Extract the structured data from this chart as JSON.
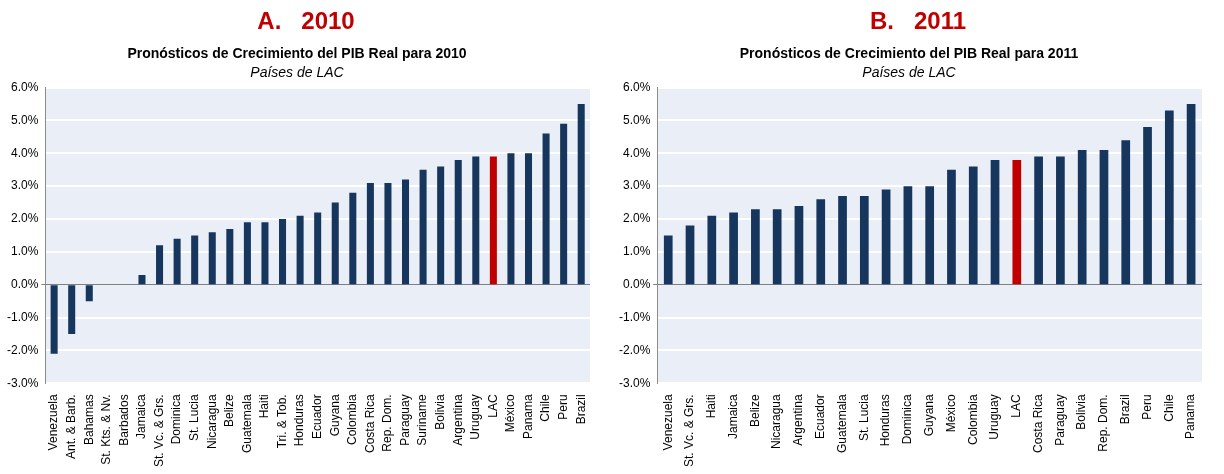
{
  "chart_data": [
    {
      "type": "bar",
      "title": "Pronósticos de Crecimiento del PIB Real para 2010",
      "subtitle": "Países de LAC",
      "annotations": [
        "A.   2010"
      ],
      "categories": [
        "Venezuela",
        "Ant. & Barb.",
        "Bahamas",
        "St. Kts. & Nv.",
        "Barbados",
        "Jamaica",
        "St. Vc. & Grs.",
        "Dominica",
        "St. Lucia",
        "Nicaragua",
        "Belize",
        "Guatemala",
        "Haiti",
        "Tri. & Tob.",
        "Honduras",
        "Ecuador",
        "Guyana",
        "Colombia",
        "Costa Rica",
        "Rep. Dom.",
        "Paraguay",
        "Suriname",
        "Bolivia",
        "Argentina",
        "Uruguay",
        "LAC",
        "México",
        "Panama",
        "Chile",
        "Peru",
        "Brazil"
      ],
      "values": [
        -2.1,
        -1.5,
        -0.5,
        0,
        0,
        0.3,
        1.2,
        1.4,
        1.5,
        1.6,
        1.7,
        1.9,
        1.9,
        2.0,
        2.1,
        2.2,
        2.5,
        2.8,
        3.1,
        3.1,
        3.2,
        3.5,
        3.6,
        3.8,
        3.9,
        3.9,
        4.0,
        4.0,
        4.6,
        4.9,
        5.5
      ],
      "colors": [
        "#17365d",
        "#17365d",
        "#17365d",
        "#17365d",
        "#17365d",
        "#17365d",
        "#17365d",
        "#17365d",
        "#17365d",
        "#17365d",
        "#17365d",
        "#17365d",
        "#17365d",
        "#17365d",
        "#17365d",
        "#17365d",
        "#17365d",
        "#17365d",
        "#17365d",
        "#17365d",
        "#17365d",
        "#17365d",
        "#17365d",
        "#17365d",
        "#17365d",
        "#c00000",
        "#17365d",
        "#17365d",
        "#17365d",
        "#17365d",
        "#17365d"
      ],
      "ylim": [
        -3,
        6
      ],
      "yticks": [
        {
          "value": -3,
          "label": "-3.0%"
        },
        {
          "value": -2,
          "label": "-2.0%"
        },
        {
          "value": -1,
          "label": "-1.0%"
        },
        {
          "value": 0,
          "label": "0.0%"
        },
        {
          "value": 1,
          "label": "1.0%"
        },
        {
          "value": 2,
          "label": "2.0%"
        },
        {
          "value": 3,
          "label": "3.0%"
        },
        {
          "value": 4,
          "label": "4.0%"
        },
        {
          "value": 5,
          "label": "5.0%"
        },
        {
          "value": 6,
          "label": "6.0%"
        }
      ],
      "grid": "y",
      "legend": false
    },
    {
      "type": "bar",
      "title": "Pronósticos de Crecimiento del PIB Real para 2011",
      "subtitle": "Países de LAC",
      "annotations": [
        "B.   2011"
      ],
      "categories": [
        "Venezuela",
        "St. Vc. & Grs.",
        "Haiti",
        "Jamaica",
        "Belize",
        "Nicaragua",
        "Argentina",
        "Ecuador",
        "Guatemala",
        "St. Lucia",
        "Honduras",
        "Dominica",
        "Guyana",
        "México",
        "Colombia",
        "Uruguay",
        "LAC",
        "Costa Rica",
        "Paraguay",
        "Bolivia",
        "Rep. Dom.",
        "Brazil",
        "Peru",
        "Chile",
        "Panama"
      ],
      "values": [
        1.5,
        1.8,
        2.1,
        2.2,
        2.3,
        2.3,
        2.4,
        2.6,
        2.7,
        2.7,
        2.9,
        3.0,
        3.0,
        3.5,
        3.6,
        3.8,
        3.8,
        3.9,
        3.9,
        4.1,
        4.1,
        4.4,
        4.8,
        5.3,
        5.5
      ],
      "colors": [
        "#17365d",
        "#17365d",
        "#17365d",
        "#17365d",
        "#17365d",
        "#17365d",
        "#17365d",
        "#17365d",
        "#17365d",
        "#17365d",
        "#17365d",
        "#17365d",
        "#17365d",
        "#17365d",
        "#17365d",
        "#17365d",
        "#c00000",
        "#17365d",
        "#17365d",
        "#17365d",
        "#17365d",
        "#17365d",
        "#17365d",
        "#17365d",
        "#17365d"
      ],
      "ylim": [
        -3,
        6
      ],
      "yticks": [
        {
          "value": -3,
          "label": "-3.0%"
        },
        {
          "value": -2,
          "label": "-2.0%"
        },
        {
          "value": -1,
          "label": "-1.0%"
        },
        {
          "value": 0,
          "label": "0.0%"
        },
        {
          "value": 1,
          "label": "1.0%"
        },
        {
          "value": 2,
          "label": "2.0%"
        },
        {
          "value": 3,
          "label": "3.0%"
        },
        {
          "value": 4,
          "label": "4.0%"
        },
        {
          "value": 5,
          "label": "5.0%"
        },
        {
          "value": 6,
          "label": "6.0%"
        }
      ],
      "grid": "y",
      "legend": false
    }
  ]
}
